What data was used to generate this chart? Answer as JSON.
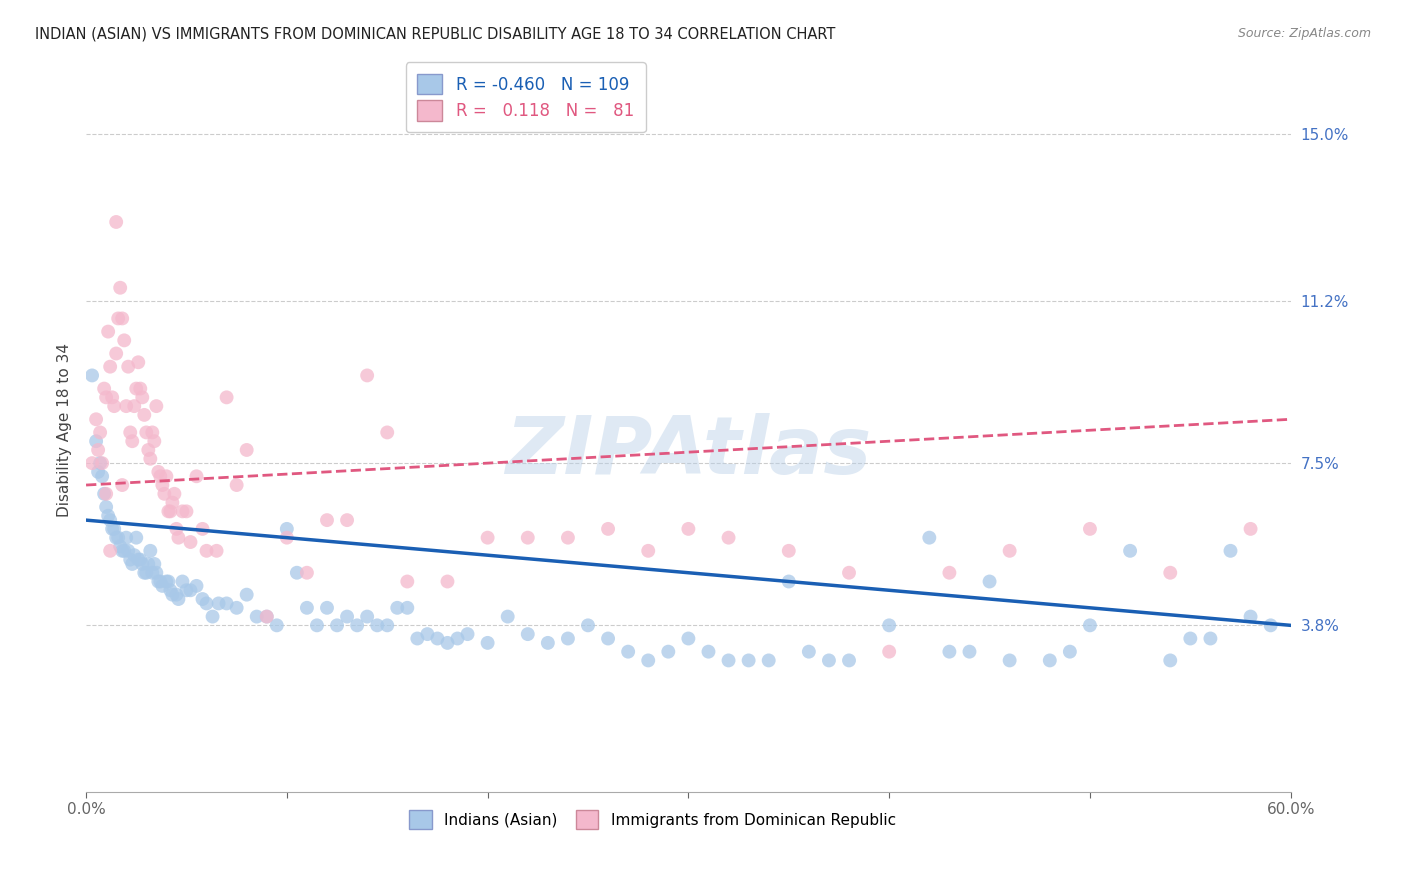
{
  "title": "INDIAN (ASIAN) VS IMMIGRANTS FROM DOMINICAN REPUBLIC DISABILITY AGE 18 TO 34 CORRELATION CHART",
  "source": "Source: ZipAtlas.com",
  "ylabel": "Disability Age 18 to 34",
  "xlim": [
    0.0,
    0.6
  ],
  "ylim": [
    0.0,
    0.165
  ],
  "ytick_labels_right": [
    "15.0%",
    "11.2%",
    "7.5%",
    "3.8%"
  ],
  "ytick_vals_right": [
    0.15,
    0.112,
    0.075,
    0.038
  ],
  "legend_blue_r": "-0.460",
  "legend_blue_n": "109",
  "legend_pink_r": "0.118",
  "legend_pink_n": "81",
  "legend_label_blue": "Indians (Asian)",
  "legend_label_pink": "Immigrants from Dominican Republic",
  "color_blue": "#a8c8e8",
  "color_pink": "#f4b8cc",
  "color_blue_line": "#1a5fb4",
  "color_pink_line": "#e05880",
  "blue_scatter_x": [
    0.003,
    0.005,
    0.006,
    0.007,
    0.008,
    0.009,
    0.01,
    0.011,
    0.012,
    0.013,
    0.014,
    0.015,
    0.016,
    0.017,
    0.018,
    0.019,
    0.02,
    0.021,
    0.022,
    0.023,
    0.024,
    0.025,
    0.026,
    0.027,
    0.028,
    0.029,
    0.03,
    0.031,
    0.032,
    0.033,
    0.034,
    0.035,
    0.036,
    0.037,
    0.038,
    0.04,
    0.041,
    0.042,
    0.043,
    0.045,
    0.046,
    0.048,
    0.05,
    0.052,
    0.055,
    0.058,
    0.06,
    0.063,
    0.066,
    0.07,
    0.075,
    0.08,
    0.085,
    0.09,
    0.095,
    0.1,
    0.105,
    0.11,
    0.115,
    0.12,
    0.125,
    0.13,
    0.135,
    0.14,
    0.145,
    0.15,
    0.155,
    0.16,
    0.165,
    0.17,
    0.175,
    0.18,
    0.185,
    0.19,
    0.2,
    0.21,
    0.22,
    0.23,
    0.24,
    0.25,
    0.26,
    0.27,
    0.28,
    0.29,
    0.3,
    0.31,
    0.32,
    0.33,
    0.34,
    0.35,
    0.36,
    0.37,
    0.38,
    0.4,
    0.42,
    0.43,
    0.44,
    0.45,
    0.46,
    0.48,
    0.49,
    0.5,
    0.52,
    0.54,
    0.55,
    0.56,
    0.57,
    0.58,
    0.59
  ],
  "blue_scatter_y": [
    0.095,
    0.08,
    0.073,
    0.075,
    0.072,
    0.068,
    0.065,
    0.063,
    0.062,
    0.06,
    0.06,
    0.058,
    0.058,
    0.056,
    0.055,
    0.055,
    0.058,
    0.055,
    0.053,
    0.052,
    0.054,
    0.058,
    0.053,
    0.053,
    0.052,
    0.05,
    0.05,
    0.052,
    0.055,
    0.05,
    0.052,
    0.05,
    0.048,
    0.048,
    0.047,
    0.048,
    0.048,
    0.046,
    0.045,
    0.045,
    0.044,
    0.048,
    0.046,
    0.046,
    0.047,
    0.044,
    0.043,
    0.04,
    0.043,
    0.043,
    0.042,
    0.045,
    0.04,
    0.04,
    0.038,
    0.06,
    0.05,
    0.042,
    0.038,
    0.042,
    0.038,
    0.04,
    0.038,
    0.04,
    0.038,
    0.038,
    0.042,
    0.042,
    0.035,
    0.036,
    0.035,
    0.034,
    0.035,
    0.036,
    0.034,
    0.04,
    0.036,
    0.034,
    0.035,
    0.038,
    0.035,
    0.032,
    0.03,
    0.032,
    0.035,
    0.032,
    0.03,
    0.03,
    0.03,
    0.048,
    0.032,
    0.03,
    0.03,
    0.038,
    0.058,
    0.032,
    0.032,
    0.048,
    0.03,
    0.03,
    0.032,
    0.038,
    0.055,
    0.03,
    0.035,
    0.035,
    0.055,
    0.04,
    0.038
  ],
  "pink_scatter_x": [
    0.003,
    0.005,
    0.006,
    0.007,
    0.008,
    0.009,
    0.01,
    0.011,
    0.012,
    0.013,
    0.014,
    0.015,
    0.016,
    0.017,
    0.018,
    0.019,
    0.02,
    0.021,
    0.022,
    0.023,
    0.024,
    0.025,
    0.026,
    0.027,
    0.028,
    0.029,
    0.03,
    0.031,
    0.032,
    0.033,
    0.034,
    0.035,
    0.036,
    0.037,
    0.038,
    0.039,
    0.04,
    0.041,
    0.042,
    0.043,
    0.044,
    0.045,
    0.046,
    0.048,
    0.05,
    0.052,
    0.055,
    0.058,
    0.06,
    0.065,
    0.07,
    0.075,
    0.08,
    0.09,
    0.1,
    0.11,
    0.12,
    0.13,
    0.14,
    0.15,
    0.16,
    0.18,
    0.2,
    0.22,
    0.24,
    0.26,
    0.28,
    0.3,
    0.32,
    0.35,
    0.38,
    0.4,
    0.43,
    0.46,
    0.5,
    0.54,
    0.58,
    0.01,
    0.012,
    0.015,
    0.018
  ],
  "pink_scatter_y": [
    0.075,
    0.085,
    0.078,
    0.082,
    0.075,
    0.092,
    0.09,
    0.105,
    0.097,
    0.09,
    0.088,
    0.13,
    0.108,
    0.115,
    0.108,
    0.103,
    0.088,
    0.097,
    0.082,
    0.08,
    0.088,
    0.092,
    0.098,
    0.092,
    0.09,
    0.086,
    0.082,
    0.078,
    0.076,
    0.082,
    0.08,
    0.088,
    0.073,
    0.072,
    0.07,
    0.068,
    0.072,
    0.064,
    0.064,
    0.066,
    0.068,
    0.06,
    0.058,
    0.064,
    0.064,
    0.057,
    0.072,
    0.06,
    0.055,
    0.055,
    0.09,
    0.07,
    0.078,
    0.04,
    0.058,
    0.05,
    0.062,
    0.062,
    0.095,
    0.082,
    0.048,
    0.048,
    0.058,
    0.058,
    0.058,
    0.06,
    0.055,
    0.06,
    0.058,
    0.055,
    0.05,
    0.032,
    0.05,
    0.055,
    0.06,
    0.05,
    0.06,
    0.068,
    0.055,
    0.1,
    0.07
  ]
}
